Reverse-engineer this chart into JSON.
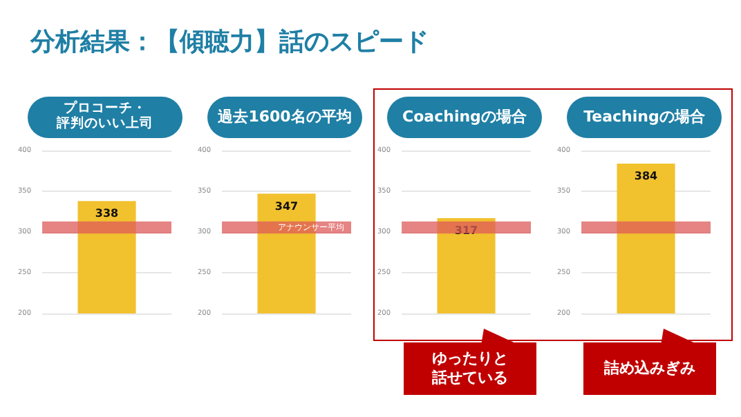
{
  "chart_data": [
    {
      "type": "bar",
      "title": "プロコーチ・評判のいい上司",
      "categories": [
        null
      ],
      "values": [
        338
      ],
      "color": "#f2c12e",
      "ylim": [
        200,
        400
      ],
      "yticks": [
        200,
        250,
        300,
        350,
        400
      ],
      "grid": "y",
      "data_labels": true,
      "bands": [
        {
          "axis": "y",
          "from": 298,
          "to": 313,
          "color": "#dd5a5a"
        }
      ],
      "annotations": [
        "分析結果：【傾聴力】話のスピード"
      ]
    },
    {
      "type": "bar",
      "title": "過去1600名の平均",
      "categories": [
        null
      ],
      "values": [
        347
      ],
      "color": "#f2c12e",
      "ylim": [
        200,
        400
      ],
      "yticks": [
        200,
        250,
        300,
        350,
        400
      ],
      "grid": "y",
      "data_labels": true,
      "bands": [
        {
          "axis": "y",
          "from": 298,
          "to": 313,
          "color": "#dd5a5a",
          "label": "アナウンサー平均"
        }
      ]
    },
    {
      "type": "bar",
      "title": "Coachingの場合",
      "categories": [
        null
      ],
      "values": [
        317
      ],
      "color": "#f2c12e",
      "ylim": [
        200,
        400
      ],
      "yticks": [
        200,
        250,
        300,
        350,
        400
      ],
      "grid": "y",
      "data_labels": true,
      "bands": [
        {
          "axis": "y",
          "from": 298,
          "to": 313,
          "color": "#dd5a5a"
        }
      ],
      "annotations": [
        "ゆったりと話せている"
      ]
    },
    {
      "type": "bar",
      "title": "Teachingの場合",
      "categories": [
        null
      ],
      "values": [
        384
      ],
      "color": "#f2c12e",
      "ylim": [
        200,
        400
      ],
      "yticks": [
        200,
        250,
        300,
        350,
        400
      ],
      "grid": "y",
      "data_labels": true,
      "bands": [
        {
          "axis": "y",
          "from": 298,
          "to": 313,
          "color": "#dd5a5a"
        }
      ],
      "annotations": [
        "詰め込みぎみ"
      ]
    }
  ]
}
